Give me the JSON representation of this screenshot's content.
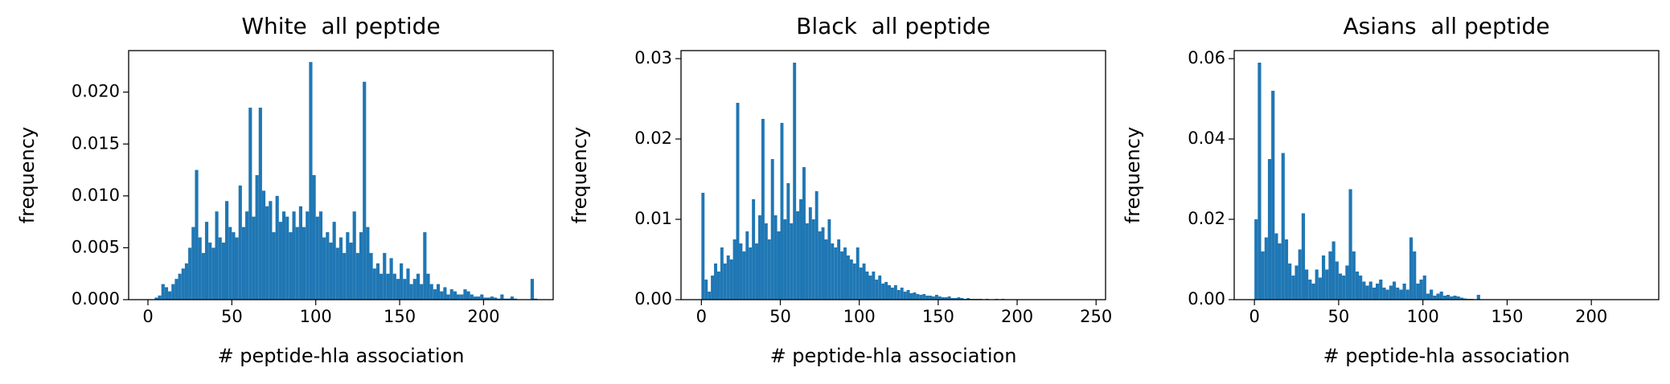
{
  "chart_data": [
    {
      "type": "histogram",
      "title": "White  all peptide",
      "xlabel": "# peptide-hla association",
      "ylabel": "frequency",
      "color": "#1f77b4",
      "bins": [
        0,
        2,
        4,
        6,
        8,
        10,
        12,
        14,
        16,
        18,
        20,
        22,
        24,
        26,
        28,
        30,
        32,
        34,
        36,
        38,
        40,
        42,
        44,
        46,
        48,
        50,
        52,
        54,
        56,
        58,
        60,
        62,
        64,
        66,
        68,
        70,
        72,
        74,
        76,
        78,
        80,
        82,
        84,
        86,
        88,
        90,
        92,
        94,
        96,
        98,
        100,
        102,
        104,
        106,
        108,
        110,
        112,
        114,
        116,
        118,
        120,
        122,
        124,
        126,
        128,
        130,
        132,
        134,
        136,
        138,
        140,
        142,
        144,
        146,
        148,
        150,
        152,
        154,
        156,
        158,
        160,
        162,
        164,
        166,
        168,
        170,
        172,
        174,
        176,
        178,
        180,
        182,
        184,
        186,
        188,
        190,
        192,
        194,
        196,
        198,
        200,
        202,
        204,
        206,
        208,
        210,
        212,
        214,
        216,
        218,
        220,
        222,
        224,
        226,
        228,
        230,
        232
      ],
      "counts": [
        0,
        0,
        0.0002,
        0.0004,
        0.0015,
        0.0012,
        0.0008,
        0.0015,
        0.002,
        0.0025,
        0.003,
        0.0035,
        0.005,
        0.007,
        0.0125,
        0.006,
        0.0045,
        0.0075,
        0.0055,
        0.005,
        0.0085,
        0.006,
        0.0055,
        0.0095,
        0.007,
        0.0065,
        0.006,
        0.011,
        0.007,
        0.0085,
        0.0185,
        0.008,
        0.012,
        0.0185,
        0.0105,
        0.009,
        0.0095,
        0.0065,
        0.01,
        0.0075,
        0.0085,
        0.008,
        0.0065,
        0.0085,
        0.007,
        0.009,
        0.007,
        0.0085,
        0.0229,
        0.012,
        0.008,
        0.0085,
        0.006,
        0.0065,
        0.0055,
        0.0075,
        0.005,
        0.006,
        0.0045,
        0.0065,
        0.0055,
        0.0085,
        0.0045,
        0.0065,
        0.021,
        0.007,
        0.0045,
        0.003,
        0.0035,
        0.0025,
        0.0045,
        0.0025,
        0.004,
        0.0025,
        0.002,
        0.0035,
        0.002,
        0.003,
        0.0015,
        0.002,
        0.0025,
        0.0015,
        0.0065,
        0.0025,
        0.0015,
        0.001,
        0.0015,
        0.0008,
        0.0012,
        0.0005,
        0.001,
        0.0008,
        0.0005,
        0.0005,
        0.001,
        0.0008,
        0.0005,
        0.0003,
        0.0003,
        0.0005,
        0.0002,
        0.0002,
        0.0003,
        0.0002,
        0.0001,
        0.0005,
        0.0001,
        0.0001,
        0.0003,
        0.0001,
        0,
        0,
        0,
        0,
        0.002,
        0.0001
      ],
      "xlim": [
        -11.5,
        241.5
      ],
      "ylim": [
        0,
        0.024
      ],
      "xticks": [
        0,
        50,
        100,
        150,
        200
      ],
      "yticks": [
        {
          "value": 0,
          "label": "0.000"
        },
        {
          "value": 0.005,
          "label": "0.005"
        },
        {
          "value": 0.01,
          "label": "0.010"
        },
        {
          "value": 0.015,
          "label": "0.015"
        },
        {
          "value": 0.02,
          "label": "0.020"
        }
      ]
    },
    {
      "type": "histogram",
      "title": "Black  all peptide",
      "xlabel": "# peptide-hla association",
      "ylabel": "frequency",
      "color": "#1f77b4",
      "bins": [
        0,
        2,
        4,
        6,
        8,
        10,
        12,
        14,
        16,
        18,
        20,
        22,
        24,
        26,
        28,
        30,
        32,
        34,
        36,
        38,
        40,
        42,
        44,
        46,
        48,
        50,
        52,
        54,
        56,
        58,
        60,
        62,
        64,
        66,
        68,
        70,
        72,
        74,
        76,
        78,
        80,
        82,
        84,
        86,
        88,
        90,
        92,
        94,
        96,
        98,
        100,
        102,
        104,
        106,
        108,
        110,
        112,
        114,
        116,
        118,
        120,
        122,
        124,
        126,
        128,
        130,
        132,
        134,
        136,
        138,
        140,
        142,
        144,
        146,
        148,
        150,
        152,
        154,
        156,
        158,
        160,
        162,
        164,
        166,
        168,
        170,
        172,
        174,
        176,
        178,
        180,
        182,
        184,
        186,
        188,
        190,
        192,
        194,
        196,
        198,
        200
      ],
      "counts": [
        0.0133,
        0.0025,
        0.001,
        0.003,
        0.0045,
        0.0035,
        0.0065,
        0.0045,
        0.0055,
        0.005,
        0.0075,
        0.0245,
        0.007,
        0.006,
        0.0085,
        0.0065,
        0.0125,
        0.007,
        0.0105,
        0.0225,
        0.0095,
        0.0075,
        0.0175,
        0.0105,
        0.0085,
        0.022,
        0.01,
        0.0145,
        0.0095,
        0.0295,
        0.011,
        0.0125,
        0.0165,
        0.0095,
        0.0115,
        0.01,
        0.0135,
        0.0085,
        0.009,
        0.0075,
        0.01,
        0.007,
        0.0065,
        0.0075,
        0.006,
        0.0065,
        0.0055,
        0.005,
        0.0045,
        0.0065,
        0.004,
        0.0045,
        0.0035,
        0.003,
        0.0035,
        0.0025,
        0.003,
        0.002,
        0.0022,
        0.0018,
        0.0015,
        0.0018,
        0.0012,
        0.0015,
        0.001,
        0.0012,
        0.0008,
        0.0009,
        0.0007,
        0.0006,
        0.0007,
        0.0005,
        0.0005,
        0.0004,
        0.0006,
        0.0004,
        0.0003,
        0.0003,
        0.0004,
        0.0002,
        0.0002,
        0.0003,
        0.0002,
        0.0001,
        0.0002,
        0.0001,
        0.0001,
        0.0001,
        0.0001,
        0,
        0.0001,
        0,
        0,
        0.0001,
        0,
        0.0001,
        0,
        0,
        0,
        0
      ],
      "xlim": [
        -12.9,
        256
      ],
      "ylim": [
        0,
        0.031
      ],
      "xticks": [
        0,
        50,
        100,
        150,
        200,
        250
      ],
      "yticks": [
        {
          "value": 0,
          "label": "0.00"
        },
        {
          "value": 0.01,
          "label": "0.01"
        },
        {
          "value": 0.02,
          "label": "0.02"
        },
        {
          "value": 0.03,
          "label": "0.03"
        }
      ]
    },
    {
      "type": "histogram",
      "title": "Asians  all peptide",
      "xlabel": "# peptide-hla association",
      "ylabel": "frequency",
      "color": "#1f77b4",
      "bins": [
        0,
        2,
        4,
        6,
        8,
        10,
        12,
        14,
        16,
        18,
        20,
        22,
        24,
        26,
        28,
        30,
        32,
        34,
        36,
        38,
        40,
        42,
        44,
        46,
        48,
        50,
        52,
        54,
        56,
        58,
        60,
        62,
        64,
        66,
        68,
        70,
        72,
        74,
        76,
        78,
        80,
        82,
        84,
        86,
        88,
        90,
        92,
        94,
        96,
        98,
        100,
        102,
        104,
        106,
        108,
        110,
        112,
        114,
        116,
        118,
        120,
        122,
        124,
        126,
        128,
        130,
        132,
        134,
        136
      ],
      "counts": [
        0.02,
        0.059,
        0.012,
        0.0155,
        0.035,
        0.052,
        0.0165,
        0.014,
        0.0365,
        0.015,
        0.009,
        0.006,
        0.0085,
        0.0125,
        0.0215,
        0.0075,
        0.005,
        0.004,
        0.0075,
        0.0055,
        0.011,
        0.0075,
        0.012,
        0.0145,
        0.0095,
        0.0065,
        0.006,
        0.0085,
        0.0275,
        0.012,
        0.007,
        0.006,
        0.0045,
        0.0035,
        0.0045,
        0.003,
        0.004,
        0.005,
        0.003,
        0.0025,
        0.0035,
        0.0045,
        0.003,
        0.0025,
        0.004,
        0.0025,
        0.0155,
        0.012,
        0.004,
        0.005,
        0.006,
        0.0015,
        0.0025,
        0.001,
        0.0015,
        0.002,
        0.001,
        0.0012,
        0.0008,
        0.001,
        0.0008,
        0.0005,
        0.0003,
        0.0002,
        0.0002,
        0.0001,
        0.0012,
        0.0001
      ],
      "xlim": [
        -12,
        240
      ],
      "ylim": [
        0,
        0.062
      ],
      "xticks": [
        0,
        50,
        100,
        150,
        200
      ],
      "yticks": [
        {
          "value": 0,
          "label": "0.00"
        },
        {
          "value": 0.02,
          "label": "0.02"
        },
        {
          "value": 0.04,
          "label": "0.04"
        },
        {
          "value": 0.06,
          "label": "0.06"
        }
      ]
    }
  ]
}
